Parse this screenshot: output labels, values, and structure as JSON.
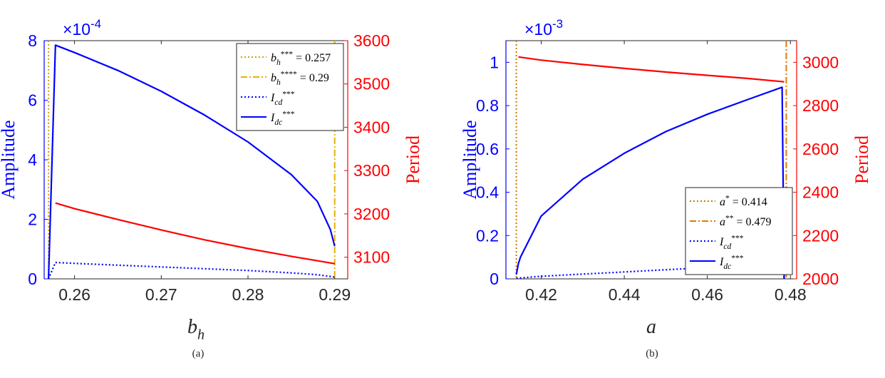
{
  "chart_data": [
    {
      "type": "line",
      "caption": "(a)",
      "xlabel": "b_h",
      "ylabel_left": "Amplitude",
      "ylabel_right": "Period",
      "left_exponent": "×10^-4",
      "xlim": [
        0.2565,
        0.2915
      ],
      "ylim_left": [
        0,
        8
      ],
      "ylim_right": [
        3050,
        3600
      ],
      "xticks": [
        0.26,
        0.27,
        0.28,
        0.29
      ],
      "xtick_labels": [
        "0.26",
        "0.27",
        "0.28",
        "0.29"
      ],
      "yticks_left": [
        0,
        2,
        4,
        6,
        8
      ],
      "ytick_labels_left": [
        "0",
        "2",
        "4",
        "6",
        "8"
      ],
      "yticks_right": [
        3100,
        3200,
        3300,
        3400,
        3500,
        3600
      ],
      "ytick_labels_right": [
        "3100",
        "3200",
        "3300",
        "3400",
        "3500",
        "3600"
      ],
      "grid": false,
      "legend_position": "top-right",
      "colors": {
        "amplitude": "#0000ff",
        "period": "#ff0000",
        "vline_short": "#d4a017",
        "vline_long": "#e8b100"
      },
      "vlines": [
        {
          "name": "b_h^{***} = 0.257",
          "x": 0.257,
          "style": "dotted",
          "color": "#d4a017"
        },
        {
          "name": "b_h^{****} = 0.29",
          "x": 0.29,
          "style": "dashdot",
          "color": "#e8b100"
        }
      ],
      "series": [
        {
          "name": "I_cd^{***}",
          "axis": "left",
          "style": "dotted",
          "color": "#0000ff",
          "x": [
            0.257,
            0.2578,
            0.26,
            0.265,
            0.27,
            0.275,
            0.28,
            0.285,
            0.288,
            0.29
          ],
          "values": [
            0.0,
            0.55,
            0.52,
            0.46,
            0.4,
            0.34,
            0.28,
            0.2,
            0.14,
            0.06
          ]
        },
        {
          "name": "I_dc^{***}",
          "axis": "left",
          "style": "solid",
          "color": "#0000ff",
          "x": [
            0.257,
            0.2578,
            0.26,
            0.265,
            0.27,
            0.275,
            0.28,
            0.285,
            0.288,
            0.2895,
            0.29
          ],
          "values": [
            0.0,
            7.85,
            7.6,
            7.0,
            6.3,
            5.5,
            4.6,
            3.5,
            2.6,
            1.65,
            1.1
          ]
        },
        {
          "name": "Period",
          "axis": "right",
          "style": "solid",
          "color": "#ff0000",
          "x": [
            0.2578,
            0.26,
            0.265,
            0.27,
            0.275,
            0.28,
            0.285,
            0.29
          ],
          "values": [
            3225,
            3212,
            3187,
            3163,
            3140,
            3120,
            3102,
            3085
          ]
        }
      ],
      "legend": [
        {
          "label": "b_h^{***} = 0.257",
          "style": "dotted",
          "color": "#d4a017"
        },
        {
          "label": "b_h^{****} = 0.29",
          "style": "dashdot",
          "color": "#e8b100"
        },
        {
          "label": "I_cd^{***}",
          "style": "dotted",
          "color": "#0000ff"
        },
        {
          "label": "I_dc^{***}",
          "style": "solid",
          "color": "#0000ff"
        }
      ]
    },
    {
      "type": "line",
      "caption": "(b)",
      "xlabel": "a",
      "ylabel_left": "Amplitude",
      "ylabel_right": "Period",
      "left_exponent": "×10^-3",
      "xlim": [
        0.4115,
        0.4815
      ],
      "ylim_left": [
        0,
        1.1
      ],
      "ylim_right": [
        2000,
        3100
      ],
      "xticks": [
        0.42,
        0.44,
        0.46,
        0.48
      ],
      "xtick_labels": [
        "0.42",
        "0.44",
        "0.46",
        "0.48"
      ],
      "yticks_left": [
        0,
        0.2,
        0.4,
        0.6,
        0.8,
        1
      ],
      "ytick_labels_left": [
        "0",
        "0.2",
        "0.4",
        "0.6",
        "0.8",
        "1"
      ],
      "yticks_right": [
        2000,
        2200,
        2400,
        2600,
        2800,
        3000
      ],
      "ytick_labels_right": [
        "2000",
        "2200",
        "2400",
        "2600",
        "2800",
        "3000"
      ],
      "grid": false,
      "legend_position": "bottom-right",
      "colors": {
        "amplitude": "#0000ff",
        "period": "#ff0000",
        "vline_short": "#cc7a00",
        "vline_long": "#e07b00"
      },
      "vlines": [
        {
          "name": "a^{*} = 0.414",
          "x": 0.414,
          "style": "dotted",
          "color": "#cc7a00"
        },
        {
          "name": "a^{**} = 0.479",
          "x": 0.479,
          "style": "dashdot",
          "color": "#e07b00"
        }
      ],
      "series": [
        {
          "name": "I_cd^{***}",
          "axis": "left",
          "style": "dotted",
          "color": "#0000ff",
          "x": [
            0.414,
            0.42,
            0.43,
            0.44,
            0.45,
            0.46,
            0.47,
            0.478,
            0.4785
          ],
          "values": [
            0.003,
            0.012,
            0.022,
            0.032,
            0.042,
            0.052,
            0.06,
            0.065,
            0.0
          ]
        },
        {
          "name": "I_dc^{***}",
          "axis": "left",
          "style": "solid",
          "color": "#0000ff",
          "x": [
            0.414,
            0.4145,
            0.415,
            0.42,
            0.43,
            0.44,
            0.45,
            0.46,
            0.47,
            0.478,
            0.4785
          ],
          "values": [
            0.02,
            0.07,
            0.1,
            0.29,
            0.46,
            0.58,
            0.68,
            0.76,
            0.83,
            0.885,
            0.0
          ]
        },
        {
          "name": "Period",
          "axis": "right",
          "style": "solid",
          "color": "#ff0000",
          "x": [
            0.4145,
            0.42,
            0.43,
            0.44,
            0.45,
            0.46,
            0.47,
            0.4785
          ],
          "values": [
            3025,
            3010,
            2990,
            2972,
            2955,
            2940,
            2925,
            2910
          ]
        }
      ],
      "legend": [
        {
          "label": "a^{*} = 0.414",
          "style": "dotted",
          "color": "#cc7a00"
        },
        {
          "label": "a^{**} = 0.479",
          "style": "dashdot",
          "color": "#e07b00"
        },
        {
          "label": "I_cd^{***}",
          "style": "dotted",
          "color": "#0000ff"
        },
        {
          "label": "I_dc^{***}",
          "style": "solid",
          "color": "#0000ff"
        }
      ]
    }
  ]
}
